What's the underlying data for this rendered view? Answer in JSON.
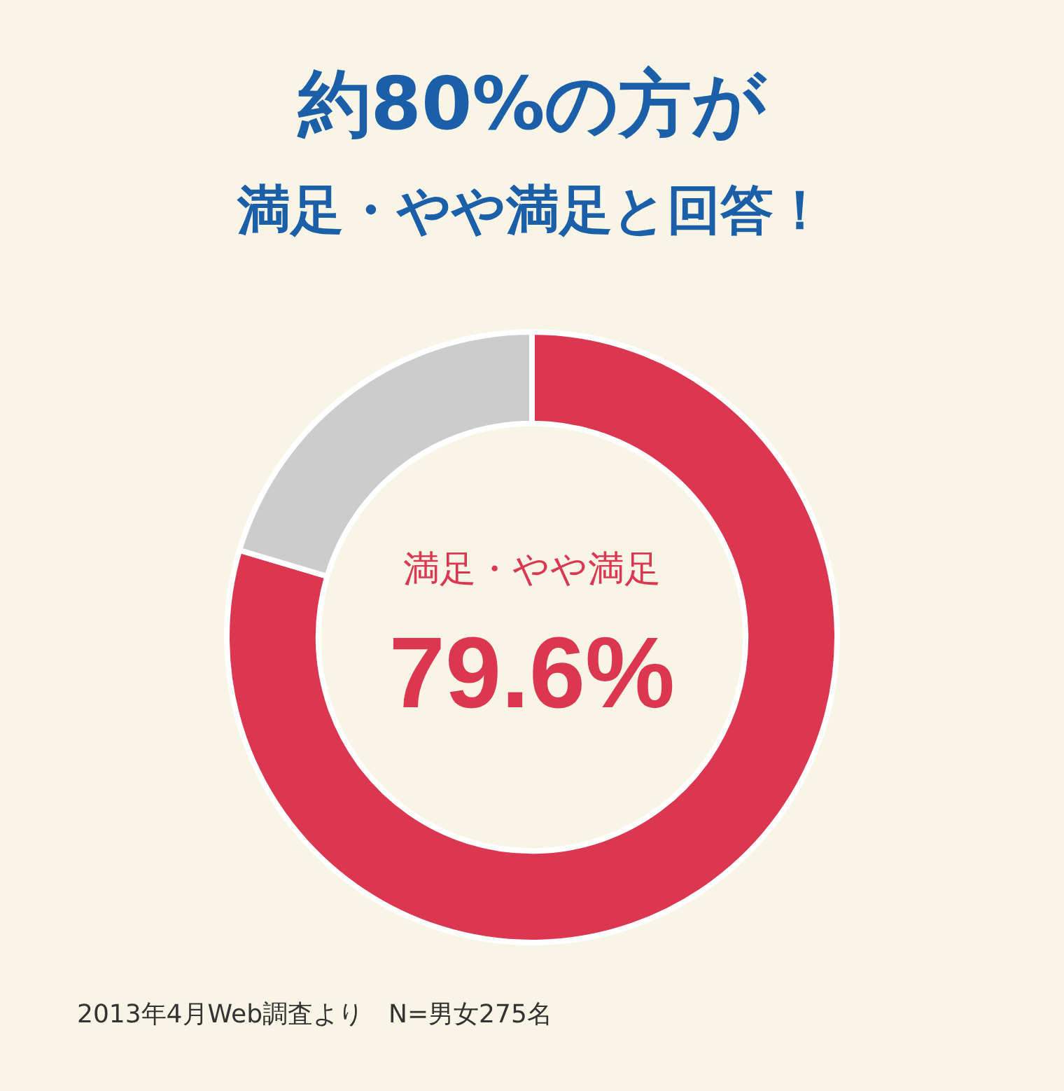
{
  "chart_data": {
    "type": "donut",
    "title": "約80%の方が",
    "subtitle": "満足・やや満足と回答！",
    "categories": [
      "満足・やや満足",
      null
    ],
    "values": [
      79.6,
      20.4
    ],
    "colors": [
      "#dc3750",
      "#cccccc"
    ],
    "value_labels": [
      "79.6%",
      null
    ],
    "legend": false,
    "annotations": [
      "2013年4月Web調査より　N=男女275名"
    ]
  }
}
